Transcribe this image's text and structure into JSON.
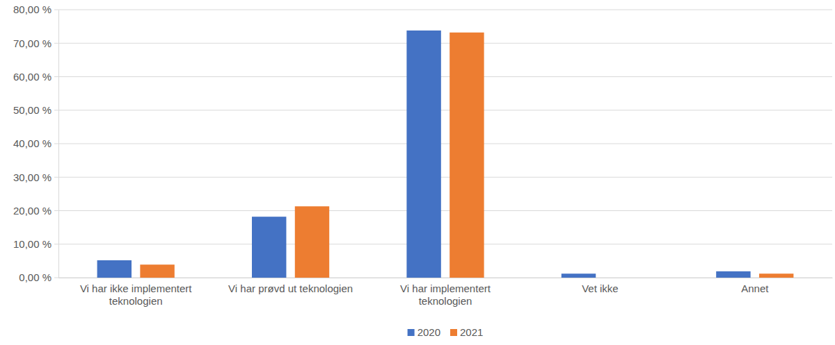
{
  "chart_data": {
    "type": "bar",
    "categories": [
      "Vi har ikke implementert teknologien",
      "Vi har prøvd ut teknologien",
      "Vi har implementert teknologien",
      "Vet ikke",
      "Annet"
    ],
    "series": [
      {
        "name": "2020",
        "color": "#4472c4",
        "values": [
          5.2,
          18.2,
          73.8,
          1.2,
          1.9
        ]
      },
      {
        "name": "2021",
        "color": "#ed7d31",
        "values": [
          3.9,
          21.3,
          73.2,
          0,
          1.2
        ]
      }
    ],
    "ylim": [
      0,
      80
    ],
    "yticks": [
      {
        "value": 0,
        "label": "0,00 %"
      },
      {
        "value": 10,
        "label": "10,00 %"
      },
      {
        "value": 20,
        "label": "20,00 %"
      },
      {
        "value": 30,
        "label": "30,00 %"
      },
      {
        "value": 40,
        "label": "40,00 %"
      },
      {
        "value": 50,
        "label": "50,00 %"
      },
      {
        "value": 60,
        "label": "60,00 %"
      },
      {
        "value": 70,
        "label": "70,00 %"
      },
      {
        "value": 80,
        "label": "80,00 %"
      }
    ],
    "grid": true,
    "legend": "bottom"
  }
}
